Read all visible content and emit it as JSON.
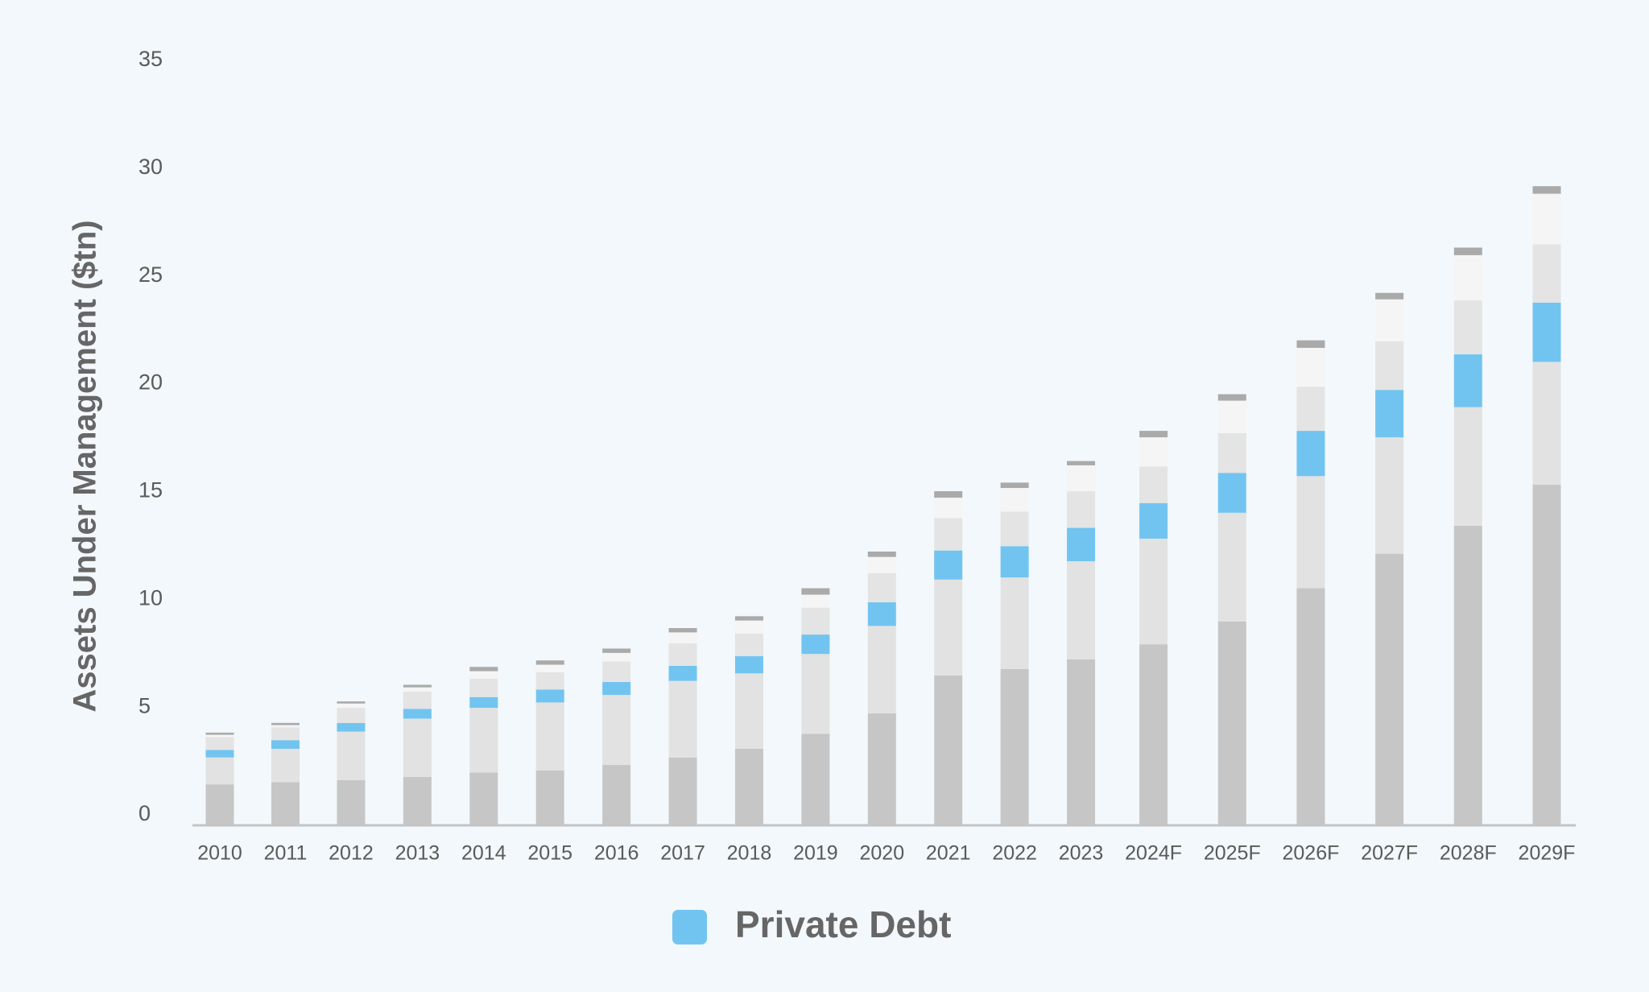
{
  "chart_data": {
    "type": "bar",
    "stacked": true,
    "y_label": "Assets Under Management ($tn)",
    "categories": [
      "2010",
      "2011",
      "2012",
      "2013",
      "2014",
      "2015",
      "2016",
      "2017",
      "2018",
      "2019",
      "2020",
      "2021",
      "2022",
      "2023",
      "2024F",
      "2025F",
      "2026F",
      "2027F",
      "2028F",
      "2029F"
    ],
    "series": [
      {
        "color": "#c6c6c6",
        "values": [
          1.9,
          2.0,
          2.1,
          2.25,
          2.45,
          2.55,
          2.8,
          3.15,
          3.55,
          4.25,
          5.2,
          6.95,
          7.25,
          7.7,
          8.4,
          9.45,
          11.0,
          12.6,
          13.9,
          15.8
        ]
      },
      {
        "color": "#e2e2e2",
        "values": [
          1.25,
          1.55,
          2.25,
          2.7,
          3.0,
          3.15,
          3.25,
          3.55,
          3.5,
          3.7,
          4.05,
          4.45,
          4.25,
          4.55,
          4.9,
          5.05,
          5.2,
          5.4,
          5.5,
          5.7
        ]
      },
      {
        "name": "Private Debt",
        "color": "#72c4f0",
        "values": [
          0.35,
          0.4,
          0.4,
          0.45,
          0.5,
          0.6,
          0.6,
          0.7,
          0.8,
          0.9,
          1.1,
          1.35,
          1.45,
          1.55,
          1.65,
          1.85,
          2.1,
          2.2,
          2.45,
          2.75
        ]
      },
      {
        "color": "#e4e4e4",
        "values": [
          0.6,
          0.6,
          0.7,
          0.8,
          0.85,
          0.8,
          0.95,
          1.05,
          1.05,
          1.25,
          1.35,
          1.5,
          1.6,
          1.7,
          1.7,
          1.85,
          2.05,
          2.25,
          2.5,
          2.7
        ]
      },
      {
        "color": "#f5f5f5",
        "values": [
          0.1,
          0.1,
          0.2,
          0.2,
          0.35,
          0.35,
          0.4,
          0.5,
          0.6,
          0.6,
          0.75,
          0.95,
          1.1,
          1.2,
          1.35,
          1.5,
          1.8,
          1.95,
          2.1,
          2.35
        ]
      },
      {
        "color": "#aaaaaa",
        "values": [
          0.1,
          0.1,
          0.1,
          0.12,
          0.2,
          0.2,
          0.2,
          0.2,
          0.2,
          0.3,
          0.25,
          0.3,
          0.25,
          0.2,
          0.3,
          0.3,
          0.35,
          0.3,
          0.35,
          0.35
        ]
      }
    ],
    "ylim": [
      0,
      35
    ],
    "yticks": [
      0,
      5,
      10,
      15,
      20,
      25,
      30,
      35
    ],
    "grid": false,
    "legend": "bottom"
  }
}
